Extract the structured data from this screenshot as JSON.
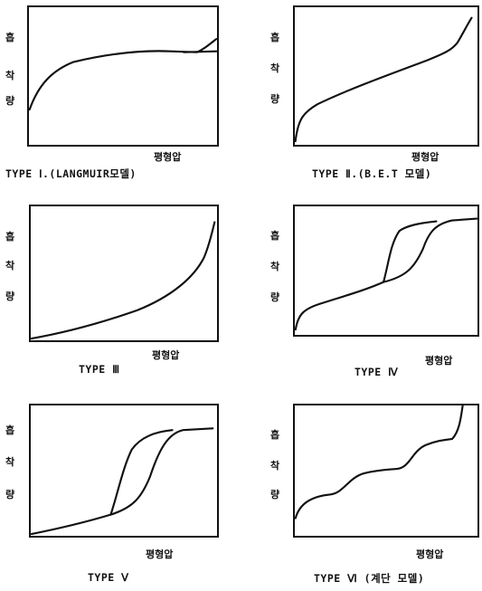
{
  "y_axis_label": [
    "흡",
    "착",
    "량"
  ],
  "x_axis_label": "평형압",
  "panels": [
    {
      "id": "type-1",
      "caption": "TYPE Ⅰ.(LANGMUIR모델)"
    },
    {
      "id": "type-2",
      "caption": "TYPE Ⅱ.(B.E.T 모델)"
    },
    {
      "id": "type-3",
      "caption": "TYPE Ⅲ"
    },
    {
      "id": "type-4",
      "caption": "TYPE Ⅳ"
    },
    {
      "id": "type-5",
      "caption": "TYPE Ⅴ"
    },
    {
      "id": "type-6",
      "caption": "TYPE Ⅵ (계단 모델)"
    }
  ]
}
